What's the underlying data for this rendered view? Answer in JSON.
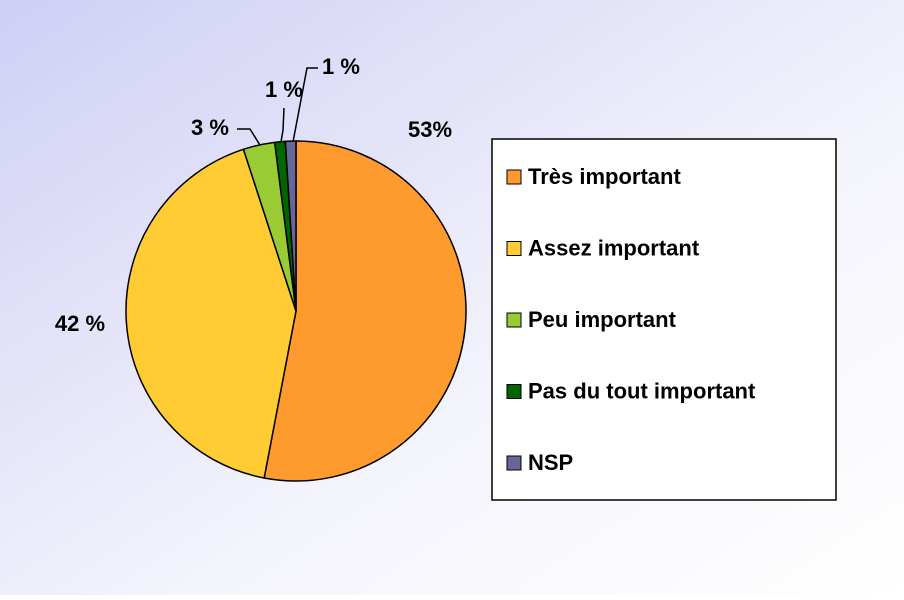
{
  "chart_data": {
    "type": "pie",
    "categories": [
      "Très important",
      "Assez important",
      "Peu important",
      "Pas du tout important",
      "NSP"
    ],
    "values": [
      53,
      42,
      3,
      1,
      1
    ],
    "value_labels": [
      "53%",
      "42 %",
      "3 %",
      "1 %",
      "1 %"
    ],
    "colors": [
      "#ff9a2e",
      "#ffcc33",
      "#99cc33",
      "#006600",
      "#666699"
    ],
    "legend": "right"
  }
}
